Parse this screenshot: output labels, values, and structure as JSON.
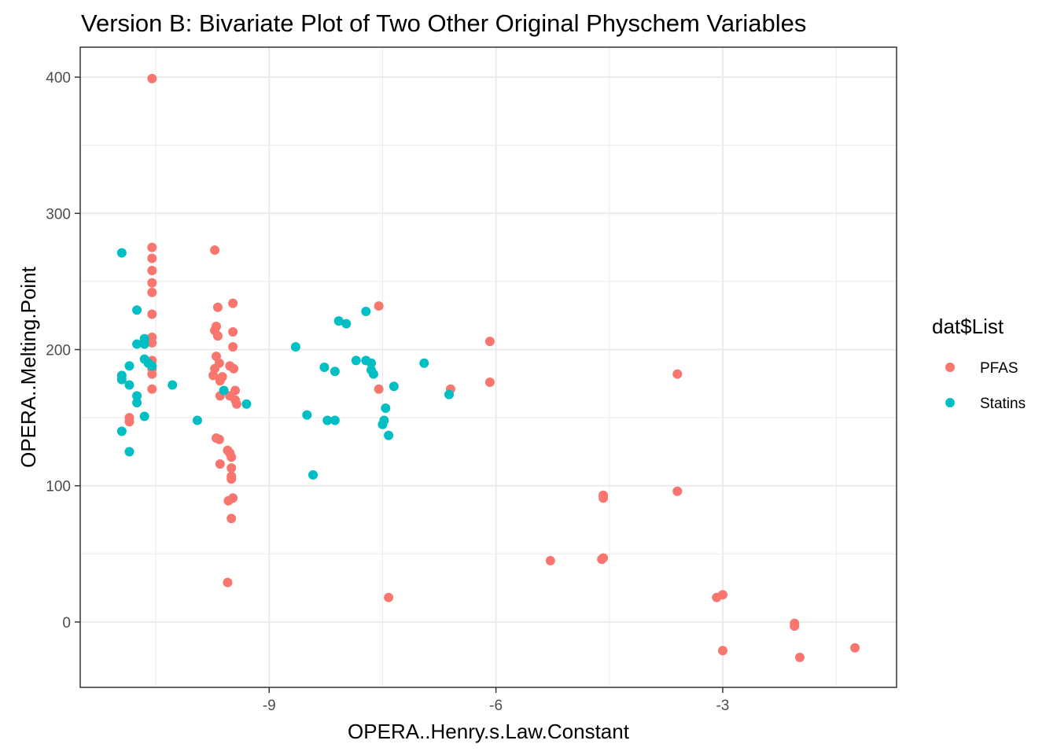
{
  "chart_data": {
    "type": "scatter",
    "title": "Version B: Bivariate Plot of Two Other Original Physchem Variables",
    "xlabel": "OPERA..Henry.s.Law.Constant",
    "ylabel": "OPERA..Melting.Point",
    "xlim": [
      -11.5,
      -0.7
    ],
    "ylim": [
      -48,
      422
    ],
    "x_ticks": [
      -9,
      -6,
      -3
    ],
    "x_tick_labels": [
      "-9",
      "-6",
      "-3"
    ],
    "x_minor": [
      -10.5,
      -7.5,
      -4.5,
      -1.5
    ],
    "y_ticks": [
      0,
      100,
      200,
      300,
      400
    ],
    "y_tick_labels": [
      "0",
      "100",
      "200",
      "300",
      "400"
    ],
    "y_minor": [
      50,
      150,
      250,
      350
    ],
    "grid": true,
    "legend": {
      "title": "dat$List",
      "position": "right",
      "entries": [
        {
          "label": "PFAS",
          "color": "#F8766D"
        },
        {
          "label": "Statins",
          "color": "#00BFC4"
        }
      ]
    },
    "series": [
      {
        "name": "PFAS",
        "color": "#F8766D",
        "points": [
          [
            -10.55,
            399
          ],
          [
            -10.55,
            275
          ],
          [
            -10.55,
            267
          ],
          [
            -10.55,
            258
          ],
          [
            -10.55,
            249
          ],
          [
            -10.55,
            242
          ],
          [
            -10.55,
            226
          ],
          [
            -10.55,
            209
          ],
          [
            -10.55,
            205
          ],
          [
            -10.55,
            192
          ],
          [
            -10.55,
            186
          ],
          [
            -10.55,
            182
          ],
          [
            -10.55,
            171
          ],
          [
            -10.85,
            150
          ],
          [
            -10.85,
            147
          ],
          [
            -9.72,
            273
          ],
          [
            -9.68,
            231
          ],
          [
            -9.7,
            217
          ],
          [
            -9.72,
            214
          ],
          [
            -9.68,
            210
          ],
          [
            -9.7,
            195
          ],
          [
            -9.66,
            190
          ],
          [
            -9.72,
            186
          ],
          [
            -9.74,
            181
          ],
          [
            -9.62,
            180
          ],
          [
            -9.65,
            177
          ],
          [
            -9.52,
            188
          ],
          [
            -9.47,
            186
          ],
          [
            -9.48,
            234
          ],
          [
            -9.48,
            213
          ],
          [
            -9.48,
            202
          ],
          [
            -9.45,
            170
          ],
          [
            -9.45,
            163
          ],
          [
            -9.52,
            166
          ],
          [
            -9.43,
            160
          ],
          [
            -9.65,
            166
          ],
          [
            -9.7,
            135
          ],
          [
            -9.66,
            134
          ],
          [
            -9.55,
            126
          ],
          [
            -9.52,
            124
          ],
          [
            -9.5,
            121
          ],
          [
            -9.65,
            116
          ],
          [
            -9.5,
            113
          ],
          [
            -9.5,
            107
          ],
          [
            -9.5,
            105
          ],
          [
            -9.48,
            91
          ],
          [
            -9.54,
            89
          ],
          [
            -9.5,
            76
          ],
          [
            -9.55,
            29
          ],
          [
            -7.55,
            232
          ],
          [
            -7.55,
            171
          ],
          [
            -7.42,
            18
          ],
          [
            -6.6,
            171
          ],
          [
            -6.08,
            206
          ],
          [
            -6.08,
            176
          ],
          [
            -5.28,
            45
          ],
          [
            -4.6,
            46
          ],
          [
            -4.58,
            47
          ],
          [
            -4.58,
            93
          ],
          [
            -4.58,
            91
          ],
          [
            -3.6,
            182
          ],
          [
            -3.6,
            96
          ],
          [
            -3.08,
            18
          ],
          [
            -3.0,
            20
          ],
          [
            -3.0,
            -21
          ],
          [
            -2.05,
            -1
          ],
          [
            -2.05,
            -3
          ],
          [
            -1.98,
            -26
          ],
          [
            -1.25,
            -19
          ]
        ]
      },
      {
        "name": "Statins",
        "color": "#00BFC4",
        "points": [
          [
            -10.95,
            271
          ],
          [
            -10.95,
            181
          ],
          [
            -10.95,
            178
          ],
          [
            -10.95,
            140
          ],
          [
            -10.85,
            188
          ],
          [
            -10.85,
            174
          ],
          [
            -10.85,
            125
          ],
          [
            -10.75,
            229
          ],
          [
            -10.75,
            204
          ],
          [
            -10.75,
            166
          ],
          [
            -10.75,
            161
          ],
          [
            -10.65,
            208
          ],
          [
            -10.65,
            204
          ],
          [
            -10.65,
            193
          ],
          [
            -10.65,
            151
          ],
          [
            -10.6,
            190
          ],
          [
            -10.55,
            188
          ],
          [
            -10.28,
            174
          ],
          [
            -9.95,
            148
          ],
          [
            -9.6,
            170
          ],
          [
            -9.3,
            160
          ],
          [
            -8.65,
            202
          ],
          [
            -8.5,
            152
          ],
          [
            -8.42,
            108
          ],
          [
            -8.27,
            187
          ],
          [
            -8.23,
            148
          ],
          [
            -8.13,
            184
          ],
          [
            -8.13,
            148
          ],
          [
            -8.08,
            221
          ],
          [
            -7.98,
            219
          ],
          [
            -7.85,
            192
          ],
          [
            -7.72,
            228
          ],
          [
            -7.72,
            192
          ],
          [
            -7.65,
            190
          ],
          [
            -7.65,
            185
          ],
          [
            -7.62,
            182
          ],
          [
            -7.5,
            145
          ],
          [
            -7.48,
            148
          ],
          [
            -7.46,
            157
          ],
          [
            -7.42,
            137
          ],
          [
            -7.35,
            173
          ],
          [
            -6.95,
            190
          ],
          [
            -6.62,
            167
          ]
        ]
      }
    ]
  }
}
